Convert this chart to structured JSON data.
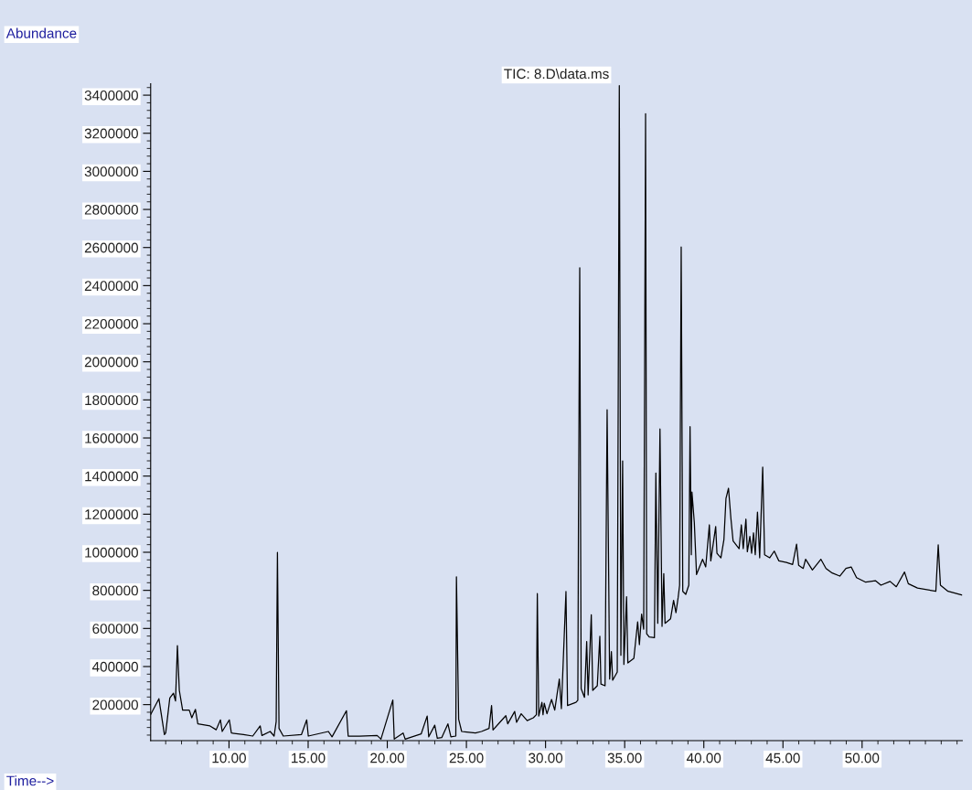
{
  "chart_data": {
    "type": "line",
    "title": "TIC: 8.D\\data.ms",
    "xlabel": "Time-->",
    "ylabel": "Abundance",
    "x": [
      5.05,
      5.57,
      5.92,
      6.0,
      6.26,
      6.49,
      6.62,
      6.74,
      6.86,
      7.07,
      7.49,
      7.65,
      7.88,
      8.03,
      8.8,
      9.19,
      9.46,
      9.57,
      10.02,
      10.15,
      10.92,
      11.5,
      11.97,
      12.08,
      12.6,
      12.85,
      12.98,
      13.06,
      13.16,
      13.43,
      14.58,
      14.91,
      15.01,
      16.28,
      16.51,
      17.42,
      17.53,
      18.24,
      19.36,
      19.6,
      20.35,
      20.44,
      21.0,
      21.13,
      22.14,
      22.52,
      22.62,
      23.0,
      23.16,
      23.44,
      23.83,
      24.02,
      24.33,
      24.37,
      24.51,
      24.7,
      25.57,
      25.95,
      26.43,
      26.59,
      26.68,
      27.11,
      27.49,
      27.61,
      28.05,
      28.17,
      28.46,
      28.84,
      29.23,
      29.42,
      29.48,
      29.57,
      29.77,
      29.84,
      29.92,
      30.09,
      30.38,
      30.58,
      30.87,
      31.0,
      31.29,
      31.39,
      31.92,
      32.04,
      32.08,
      32.16,
      32.25,
      32.46,
      32.6,
      32.69,
      32.89,
      32.98,
      33.27,
      33.43,
      33.5,
      33.76,
      33.89,
      34.05,
      34.16,
      34.24,
      34.53,
      34.66,
      34.76,
      34.87,
      34.95,
      35.12,
      35.2,
      35.58,
      35.82,
      35.93,
      36.07,
      36.2,
      36.32,
      36.39,
      36.55,
      36.88,
      36.97,
      37.09,
      37.23,
      37.36,
      37.47,
      37.55,
      37.9,
      38.09,
      38.24,
      38.38,
      38.47,
      38.57,
      38.67,
      38.86,
      39.05,
      39.13,
      39.21,
      39.25,
      39.4,
      39.54,
      39.73,
      39.92,
      40.12,
      40.35,
      40.44,
      40.75,
      40.83,
      41.08,
      41.27,
      41.4,
      41.56,
      41.71,
      41.85,
      42.23,
      42.37,
      42.49,
      42.66,
      42.75,
      42.91,
      43.02,
      43.14,
      43.25,
      43.39,
      43.53,
      43.72,
      43.84,
      44.16,
      44.45,
      44.74,
      45.22,
      45.61,
      45.86,
      45.99,
      46.28,
      46.43,
      46.86,
      47.4,
      47.72,
      48.11,
      48.59,
      48.98,
      49.31,
      49.65,
      50.23,
      50.84,
      51.19,
      51.77,
      52.16,
      52.68,
      52.92,
      53.5,
      54.66,
      54.81,
      54.95,
      55.43,
      56.3
    ],
    "series": [
      {
        "color": "#000000",
        "values": [
          148000,
          231000,
          43000,
          51000,
          235000,
          260000,
          219000,
          510000,
          275000,
          171000,
          171000,
          131000,
          175000,
          99000,
          88000,
          68000,
          120000,
          59000,
          120000,
          51000,
          43000,
          35000,
          88000,
          38000,
          59000,
          35000,
          111000,
          999000,
          75000,
          35000,
          43000,
          120000,
          35000,
          59000,
          31000,
          168000,
          35000,
          35000,
          38000,
          19000,
          224000,
          19000,
          51000,
          19000,
          46000,
          140000,
          31000,
          92000,
          24000,
          27000,
          99000,
          31000,
          35000,
          871000,
          123000,
          59000,
          51000,
          59000,
          75000,
          195000,
          67000,
          107000,
          142000,
          99000,
          164000,
          107000,
          152000,
          116000,
          131000,
          147000,
          783000,
          140000,
          212000,
          147000,
          207000,
          152000,
          227000,
          171000,
          334000,
          179000,
          794000,
          195000,
          212000,
          223000,
          1155000,
          2494000,
          283000,
          238000,
          531000,
          251000,
          672000,
          275000,
          299000,
          559000,
          308000,
          299000,
          1748000,
          334000,
          478000,
          328000,
          371000,
          3450000,
          459000,
          1480000,
          411000,
          767000,
          419000,
          443000,
          635000,
          515000,
          675000,
          596000,
          3303000,
          572000,
          555000,
          552000,
          1416000,
          627000,
          1647000,
          611000,
          888000,
          627000,
          651000,
          747000,
          683000,
          764000,
          827000,
          2603000,
          795000,
          779000,
          827000,
          1660000,
          987000,
          1316000,
          1155000,
          883000,
          923000,
          963000,
          923000,
          1144000,
          955000,
          1135000,
          995000,
          971000,
          1067000,
          1283000,
          1336000,
          1179000,
          1059000,
          1019000,
          1144000,
          1019000,
          1174000,
          1003000,
          1083000,
          995000,
          1102000,
          987000,
          1211000,
          971000,
          1447000,
          987000,
          971000,
          1006000,
          955000,
          947000,
          936000,
          1043000,
          932000,
          915000,
          963000,
          907000,
          963000,
          915000,
          891000,
          875000,
          915000,
          923000,
          867000,
          843000,
          851000,
          827000,
          847000,
          819000,
          896000,
          835000,
          812000,
          795000,
          1039000,
          827000,
          795000,
          776000
        ]
      }
    ],
    "xlim": [
      5.05,
      56.33
    ],
    "ylim": [
      11000,
      3460000
    ],
    "xticks": [
      {
        "value": 6,
        "label": null
      },
      {
        "value": 7,
        "label": null
      },
      {
        "value": 8,
        "label": null
      },
      {
        "value": 9,
        "label": null
      },
      {
        "value": 10,
        "label": "10.00"
      },
      {
        "value": 11,
        "label": null
      },
      {
        "value": 12,
        "label": null
      },
      {
        "value": 13,
        "label": null
      },
      {
        "value": 14,
        "label": null
      },
      {
        "value": 15,
        "label": "15.00"
      },
      {
        "value": 16,
        "label": null
      },
      {
        "value": 17,
        "label": null
      },
      {
        "value": 18,
        "label": null
      },
      {
        "value": 19,
        "label": null
      },
      {
        "value": 20,
        "label": "20.00"
      },
      {
        "value": 21,
        "label": null
      },
      {
        "value": 22,
        "label": null
      },
      {
        "value": 23,
        "label": null
      },
      {
        "value": 24,
        "label": null
      },
      {
        "value": 25,
        "label": "25.00"
      },
      {
        "value": 26,
        "label": null
      },
      {
        "value": 27,
        "label": null
      },
      {
        "value": 28,
        "label": null
      },
      {
        "value": 29,
        "label": null
      },
      {
        "value": 30,
        "label": "30.00"
      },
      {
        "value": 31,
        "label": null
      },
      {
        "value": 32,
        "label": null
      },
      {
        "value": 33,
        "label": null
      },
      {
        "value": 34,
        "label": null
      },
      {
        "value": 35,
        "label": "35.00"
      },
      {
        "value": 36,
        "label": null
      },
      {
        "value": 37,
        "label": null
      },
      {
        "value": 38,
        "label": null
      },
      {
        "value": 39,
        "label": null
      },
      {
        "value": 40,
        "label": "40.00"
      },
      {
        "value": 41,
        "label": null
      },
      {
        "value": 42,
        "label": null
      },
      {
        "value": 43,
        "label": null
      },
      {
        "value": 44,
        "label": null
      },
      {
        "value": 45,
        "label": "45.00"
      },
      {
        "value": 46,
        "label": null
      },
      {
        "value": 47,
        "label": null
      },
      {
        "value": 48,
        "label": null
      },
      {
        "value": 49,
        "label": null
      },
      {
        "value": 50,
        "label": "50.00"
      },
      {
        "value": 51,
        "label": null
      },
      {
        "value": 52,
        "label": null
      },
      {
        "value": 53,
        "label": null
      },
      {
        "value": 54,
        "label": null
      },
      {
        "value": 55,
        "label": null
      },
      {
        "value": 56,
        "label": null
      }
    ],
    "yticks": [
      200000,
      400000,
      600000,
      800000,
      1000000,
      1200000,
      1400000,
      1600000,
      1800000,
      2000000,
      2200000,
      2400000,
      2600000,
      2800000,
      3000000,
      3200000,
      3400000,
      {
        "value": 40000,
        "label": null
      },
      {
        "value": 80000,
        "label": null
      },
      {
        "value": 120000,
        "label": null
      },
      {
        "value": 160000,
        "label": null
      },
      {
        "value": 240000,
        "label": null
      },
      {
        "value": 280000,
        "label": null
      },
      {
        "value": 320000,
        "label": null
      },
      {
        "value": 360000,
        "label": null
      },
      {
        "value": 440000,
        "label": null
      },
      {
        "value": 480000,
        "label": null
      },
      {
        "value": 520000,
        "label": null
      },
      {
        "value": 560000,
        "label": null
      },
      {
        "value": 640000,
        "label": null
      },
      {
        "value": 680000,
        "label": null
      },
      {
        "value": 720000,
        "label": null
      },
      {
        "value": 760000,
        "label": null
      },
      {
        "value": 840000,
        "label": null
      },
      {
        "value": 880000,
        "label": null
      },
      {
        "value": 920000,
        "label": null
      },
      {
        "value": 960000,
        "label": null
      },
      {
        "value": 1040000,
        "label": null
      },
      {
        "value": 1080000,
        "label": null
      },
      {
        "value": 1120000,
        "label": null
      },
      {
        "value": 1160000,
        "label": null
      },
      {
        "value": 1240000,
        "label": null
      },
      {
        "value": 1280000,
        "label": null
      },
      {
        "value": 1320000,
        "label": null
      },
      {
        "value": 1360000,
        "label": null
      },
      {
        "value": 1440000,
        "label": null
      },
      {
        "value": 1480000,
        "label": null
      },
      {
        "value": 1520000,
        "label": null
      },
      {
        "value": 1560000,
        "label": null
      },
      {
        "value": 1640000,
        "label": null
      },
      {
        "value": 1680000,
        "label": null
      },
      {
        "value": 1720000,
        "label": null
      },
      {
        "value": 1760000,
        "label": null
      },
      {
        "value": 1840000,
        "label": null
      },
      {
        "value": 1880000,
        "label": null
      },
      {
        "value": 1920000,
        "label": null
      },
      {
        "value": 1960000,
        "label": null
      },
      {
        "value": 2040000,
        "label": null
      },
      {
        "value": 2080000,
        "label": null
      },
      {
        "value": 2120000,
        "label": null
      },
      {
        "value": 2160000,
        "label": null
      },
      {
        "value": 2240000,
        "label": null
      },
      {
        "value": 2280000,
        "label": null
      },
      {
        "value": 2320000,
        "label": null
      },
      {
        "value": 2360000,
        "label": null
      },
      {
        "value": 2440000,
        "label": null
      },
      {
        "value": 2480000,
        "label": null
      },
      {
        "value": 2520000,
        "label": null
      },
      {
        "value": 2560000,
        "label": null
      },
      {
        "value": 2640000,
        "label": null
      },
      {
        "value": 2680000,
        "label": null
      },
      {
        "value": 2720000,
        "label": null
      },
      {
        "value": 2760000,
        "label": null
      },
      {
        "value": 2840000,
        "label": null
      },
      {
        "value": 2880000,
        "label": null
      },
      {
        "value": 2920000,
        "label": null
      },
      {
        "value": 2960000,
        "label": null
      },
      {
        "value": 3040000,
        "label": null
      },
      {
        "value": 3080000,
        "label": null
      },
      {
        "value": 3120000,
        "label": null
      },
      {
        "value": 3160000,
        "label": null
      },
      {
        "value": 3240000,
        "label": null
      },
      {
        "value": 3280000,
        "label": null
      },
      {
        "value": 3320000,
        "label": null
      },
      {
        "value": 3360000,
        "label": null
      },
      {
        "value": 3440000,
        "label": null
      }
    ],
    "grid": false,
    "marker": "none",
    "line_style": "solid"
  }
}
